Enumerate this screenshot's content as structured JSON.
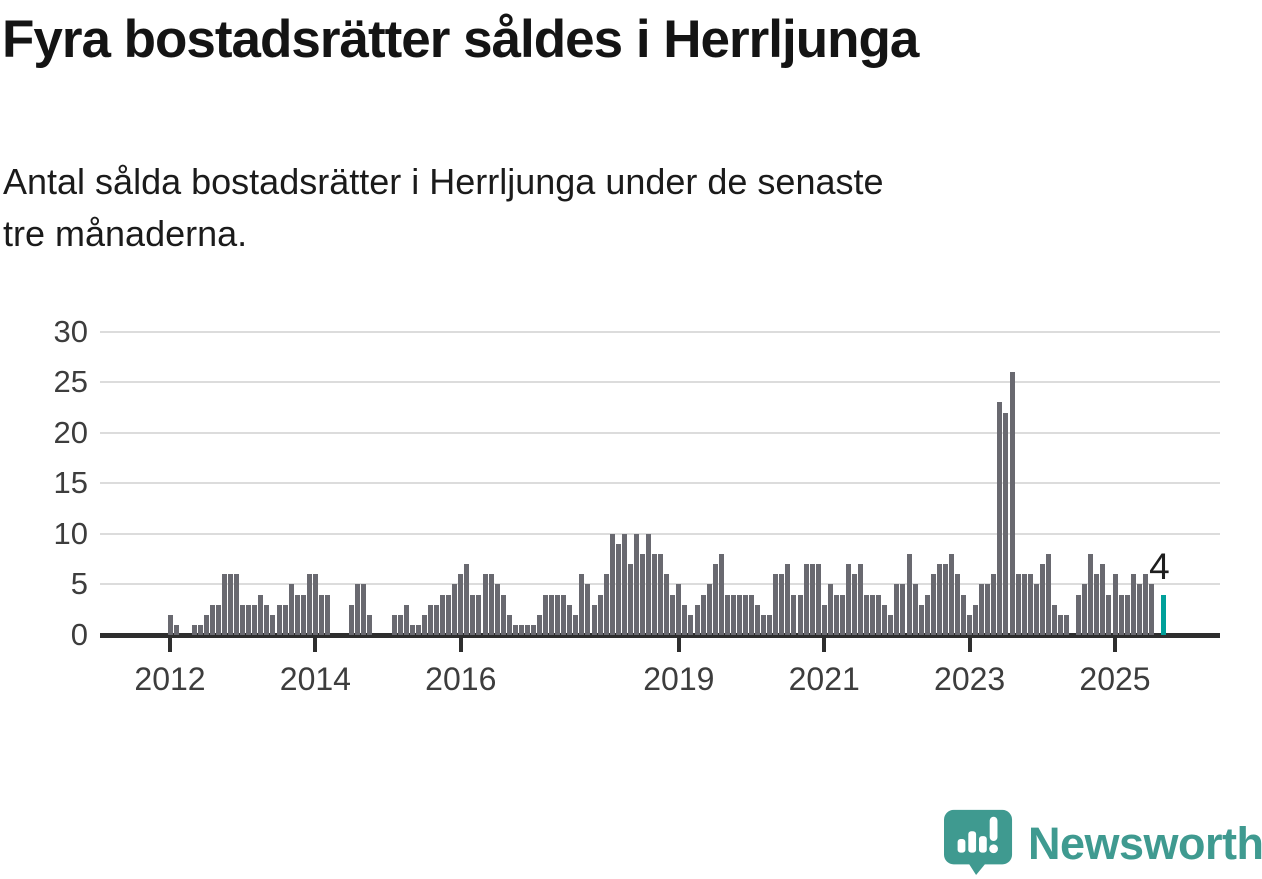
{
  "header": {
    "title": "Fyra bostadsrätter såldes i Herrljunga",
    "subtitle_line1": "Antal sålda bostadsrätter i Herrljunga under de senaste",
    "subtitle_line2": "tre månaderna."
  },
  "annotation": {
    "latest_value_label": "4"
  },
  "branding": {
    "name": "Newsworthy",
    "icon": "newsworthy-chart-speech-bubble-icon"
  },
  "colors": {
    "background": "#ffffff",
    "bar": "#696970",
    "highlight": "#00a09a",
    "title_text": "#141414",
    "subtitle_text": "#1b1b1b",
    "axis_text": "#3d3d3d",
    "gridline": "#dcdcdc",
    "axis_line": "#2e2e2e",
    "brand_teal": "#3f9a90"
  },
  "chart_data": {
    "type": "bar",
    "title": "Fyra bostadsrätter såldes i Herrljunga",
    "subtitle": "Antal sålda bostadsrätter i Herrljunga under de senaste tre månaderna.",
    "x_start_month": "2012-01",
    "x_end_month": "2025-09",
    "x_tick_years": [
      2012,
      2014,
      2016,
      2019,
      2021,
      2023,
      2025
    ],
    "y_ticks": [
      0,
      5,
      10,
      15,
      20,
      25,
      30
    ],
    "ylim": [
      0,
      30
    ],
    "grid": true,
    "legend": false,
    "highlight_index": 164,
    "highlight_value": 4,
    "values": [
      2,
      1,
      0,
      0,
      1,
      1,
      2,
      3,
      3,
      6,
      6,
      6,
      3,
      3,
      3,
      4,
      3,
      2,
      3,
      3,
      5,
      4,
      4,
      6,
      6,
      4,
      4,
      0,
      0,
      0,
      3,
      5,
      5,
      2,
      0,
      0,
      0,
      2,
      2,
      3,
      1,
      1,
      2,
      3,
      3,
      4,
      4,
      5,
      6,
      7,
      4,
      4,
      6,
      6,
      5,
      4,
      2,
      1,
      1,
      1,
      1,
      2,
      4,
      4,
      4,
      4,
      3,
      2,
      6,
      5,
      3,
      4,
      6,
      10,
      9,
      10,
      7,
      10,
      8,
      10,
      8,
      8,
      6,
      4,
      5,
      3,
      2,
      3,
      4,
      5,
      7,
      8,
      4,
      4,
      4,
      4,
      4,
      3,
      2,
      2,
      6,
      6,
      7,
      4,
      4,
      7,
      7,
      7,
      3,
      5,
      4,
      4,
      7,
      6,
      7,
      4,
      4,
      4,
      3,
      2,
      5,
      5,
      8,
      5,
      3,
      4,
      6,
      7,
      7,
      8,
      6,
      4,
      2,
      3,
      5,
      5,
      6,
      23,
      22,
      26,
      6,
      6,
      6,
      5,
      7,
      8,
      3,
      2,
      2,
      0,
      4,
      5,
      8,
      6,
      7,
      4,
      6,
      4,
      4,
      6,
      5,
      6,
      5,
      0,
      4
    ]
  }
}
